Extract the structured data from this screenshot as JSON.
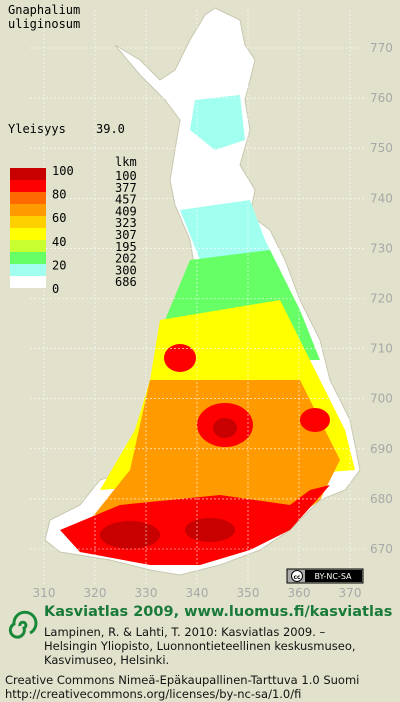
{
  "map": {
    "title": [
      "Gnaphalium",
      "uliginosum"
    ],
    "frequency": {
      "label": "Yleisyys",
      "value": "39.0"
    },
    "legend": {
      "scale": [
        "100",
        "80",
        "60",
        "40",
        "20",
        "0"
      ],
      "count_header": "lkm",
      "counts": [
        "100",
        "377",
        "457",
        "409",
        "323",
        "307",
        "195",
        "202",
        "300",
        "686"
      ],
      "colors": [
        "#c80000",
        "#ff0000",
        "#ff6a00",
        "#ff9a00",
        "#ffd000",
        "#ffff00",
        "#c8ff30",
        "#66ff66",
        "#a0ffee",
        "#ffffff"
      ]
    },
    "y_axis": [
      "770",
      "760",
      "750",
      "740",
      "730",
      "720",
      "710",
      "700",
      "690",
      "680",
      "670"
    ],
    "x_axis": [
      "310",
      "320",
      "330",
      "340",
      "350",
      "360",
      "370"
    ],
    "badge": {
      "cc": "cc",
      "text": "BY-NC-SA"
    }
  },
  "footer": {
    "brand": "Kasviatlas 2009, www.luomus.fi/kasviatlas",
    "citation": [
      "Lampinen, R. & Lahti, T. 2010: Kasviatlas 2009. –",
      "Helsingin Yliopisto, Luonnontieteellinen keskusmuseo,",
      "Kasvimuseo, Helsinki."
    ],
    "license": [
      "Creative Commons Nimeä-Epäkaupallinen-Tarttuva 1.0 Suomi",
      "http://creativecommons.org/licenses/by-nc-sa/1.0/fi"
    ]
  }
}
